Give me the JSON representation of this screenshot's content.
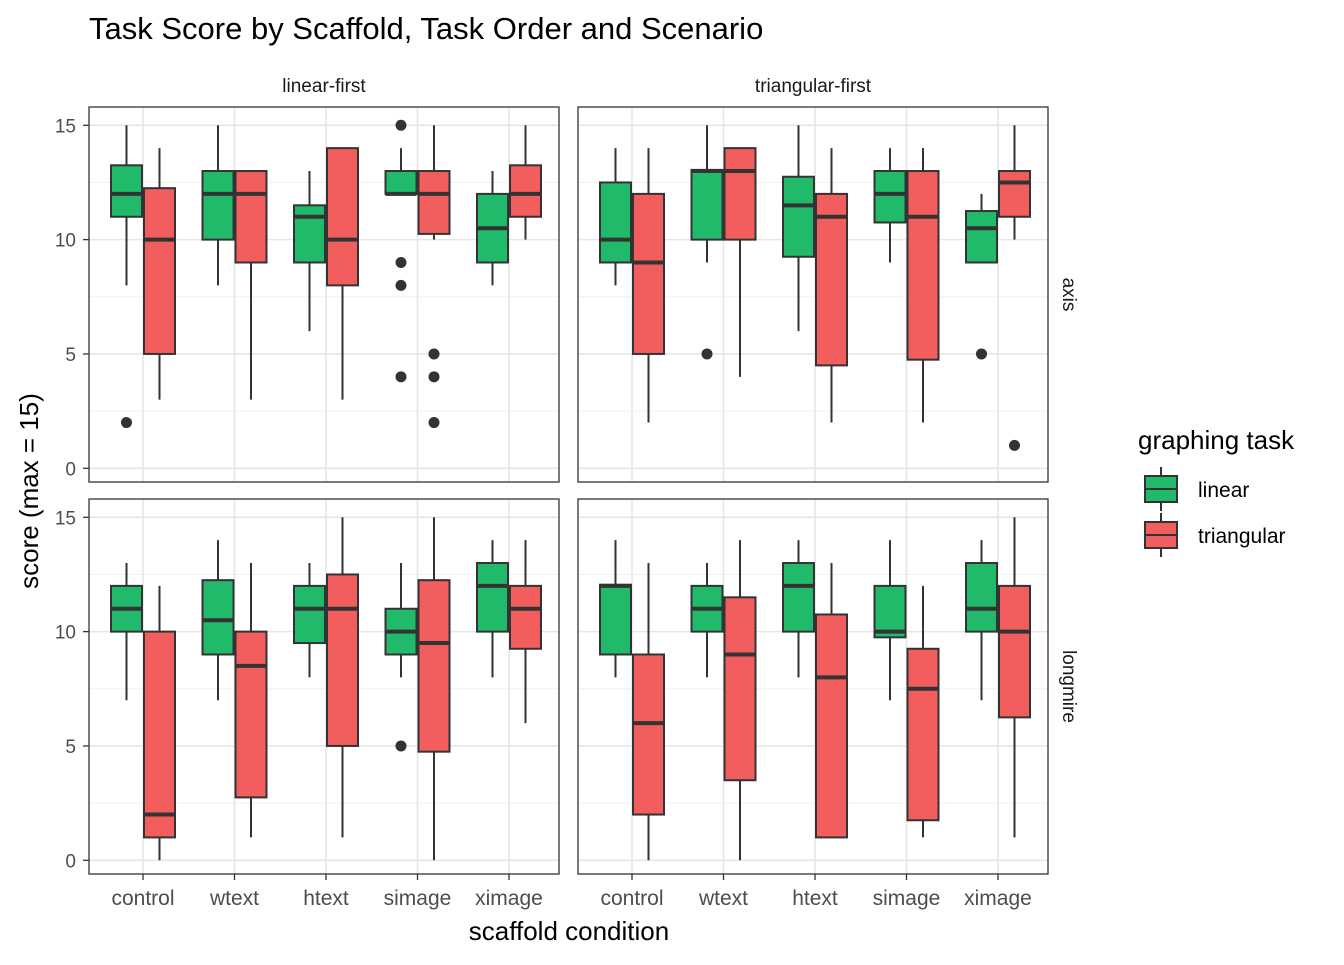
{
  "chart_data": {
    "type": "boxplot",
    "title": "Task Score by Scaffold, Task Order and Scenario",
    "xlabel": "scaffold condition",
    "ylabel": "score (max = 15)",
    "ylim": [
      -0.6,
      15.8
    ],
    "yticks": [
      0,
      5,
      10,
      15
    ],
    "categories": [
      "control",
      "wtext",
      "htext",
      "simage",
      "ximage"
    ],
    "legend": {
      "title": "graphing task",
      "position": "right",
      "entries": [
        {
          "name": "linear",
          "color": "#21BA6A"
        },
        {
          "name": "triangular",
          "color": "#F25E5E"
        }
      ]
    },
    "facet_columns": [
      "linear-first",
      "triangular-first"
    ],
    "facet_rows": [
      "axis",
      "longmire"
    ],
    "grid": true,
    "panels": [
      {
        "column": "linear-first",
        "row": "axis",
        "series": [
          {
            "name": "linear",
            "boxes": [
              {
                "category": "control",
                "whisker_low": 8,
                "q1": 11,
                "median": 12,
                "q3": 13.25,
                "whisker_high": 15,
                "outliers": [
                  2
                ]
              },
              {
                "category": "wtext",
                "whisker_low": 8,
                "q1": 10,
                "median": 12,
                "q3": 13,
                "whisker_high": 15,
                "outliers": []
              },
              {
                "category": "htext",
                "whisker_low": 6,
                "q1": 9,
                "median": 11,
                "q3": 11.5,
                "whisker_high": 13,
                "outliers": []
              },
              {
                "category": "simage",
                "whisker_low": 12,
                "q1": 12,
                "median": 12,
                "q3": 13,
                "whisker_high": 14,
                "outliers": [
                  15,
                  9,
                  8,
                  4
                ]
              },
              {
                "category": "ximage",
                "whisker_low": 8,
                "q1": 9,
                "median": 10.5,
                "q3": 12,
                "whisker_high": 13,
                "outliers": []
              }
            ]
          },
          {
            "name": "triangular",
            "boxes": [
              {
                "category": "control",
                "whisker_low": 3,
                "q1": 5,
                "median": 10,
                "q3": 12.25,
                "whisker_high": 14,
                "outliers": []
              },
              {
                "category": "wtext",
                "whisker_low": 3,
                "q1": 9,
                "median": 12,
                "q3": 13,
                "whisker_high": 13,
                "outliers": []
              },
              {
                "category": "htext",
                "whisker_low": 3,
                "q1": 8,
                "median": 10,
                "q3": 14,
                "whisker_high": 14,
                "outliers": []
              },
              {
                "category": "simage",
                "whisker_low": 10,
                "q1": 10.25,
                "median": 12,
                "q3": 13,
                "whisker_high": 15,
                "outliers": [
                  5,
                  4,
                  2
                ]
              },
              {
                "category": "ximage",
                "whisker_low": 10,
                "q1": 11,
                "median": 12,
                "q3": 13.25,
                "whisker_high": 15,
                "outliers": []
              }
            ]
          }
        ]
      },
      {
        "column": "triangular-first",
        "row": "axis",
        "series": [
          {
            "name": "linear",
            "boxes": [
              {
                "category": "control",
                "whisker_low": 8,
                "q1": 9,
                "median": 10,
                "q3": 12.5,
                "whisker_high": 14,
                "outliers": []
              },
              {
                "category": "wtext",
                "whisker_low": 9,
                "q1": 10,
                "median": 13,
                "q3": 13.05,
                "whisker_high": 15,
                "outliers": [
                  5
                ]
              },
              {
                "category": "htext",
                "whisker_low": 6,
                "q1": 9.25,
                "median": 11.5,
                "q3": 12.75,
                "whisker_high": 15,
                "outliers": []
              },
              {
                "category": "simage",
                "whisker_low": 9,
                "q1": 10.75,
                "median": 12,
                "q3": 13,
                "whisker_high": 14,
                "outliers": []
              },
              {
                "category": "ximage",
                "whisker_low": 9,
                "q1": 9,
                "median": 10.5,
                "q3": 11.25,
                "whisker_high": 12,
                "outliers": [
                  5
                ]
              }
            ]
          },
          {
            "name": "triangular",
            "boxes": [
              {
                "category": "control",
                "whisker_low": 2,
                "q1": 5,
                "median": 9,
                "q3": 12,
                "whisker_high": 14,
                "outliers": []
              },
              {
                "category": "wtext",
                "whisker_low": 4,
                "q1": 10,
                "median": 13,
                "q3": 14,
                "whisker_high": 14,
                "outliers": []
              },
              {
                "category": "htext",
                "whisker_low": 2,
                "q1": 4.5,
                "median": 11,
                "q3": 12,
                "whisker_high": 14,
                "outliers": []
              },
              {
                "category": "simage",
                "whisker_low": 2,
                "q1": 4.75,
                "median": 11,
                "q3": 13,
                "whisker_high": 14,
                "outliers": []
              },
              {
                "category": "ximage",
                "whisker_low": 10,
                "q1": 11,
                "median": 12.5,
                "q3": 13,
                "whisker_high": 15,
                "outliers": [
                  1
                ]
              }
            ]
          }
        ]
      },
      {
        "column": "linear-first",
        "row": "longmire",
        "series": [
          {
            "name": "linear",
            "boxes": [
              {
                "category": "control",
                "whisker_low": 7,
                "q1": 10,
                "median": 11,
                "q3": 12,
                "whisker_high": 13,
                "outliers": []
              },
              {
                "category": "wtext",
                "whisker_low": 7,
                "q1": 9,
                "median": 10.5,
                "q3": 12.25,
                "whisker_high": 14,
                "outliers": []
              },
              {
                "category": "htext",
                "whisker_low": 8,
                "q1": 9.5,
                "median": 11,
                "q3": 12,
                "whisker_high": 13,
                "outliers": []
              },
              {
                "category": "simage",
                "whisker_low": 8,
                "q1": 9,
                "median": 10,
                "q3": 11,
                "whisker_high": 13,
                "outliers": [
                  5
                ]
              },
              {
                "category": "ximage",
                "whisker_low": 8,
                "q1": 10,
                "median": 12,
                "q3": 13,
                "whisker_high": 14,
                "outliers": []
              }
            ]
          },
          {
            "name": "triangular",
            "boxes": [
              {
                "category": "control",
                "whisker_low": 0,
                "q1": 1,
                "median": 2,
                "q3": 10,
                "whisker_high": 12,
                "outliers": []
              },
              {
                "category": "wtext",
                "whisker_low": 1,
                "q1": 2.75,
                "median": 8.5,
                "q3": 10,
                "whisker_high": 13,
                "outliers": []
              },
              {
                "category": "htext",
                "whisker_low": 1,
                "q1": 5,
                "median": 11,
                "q3": 12.5,
                "whisker_high": 15,
                "outliers": []
              },
              {
                "category": "simage",
                "whisker_low": 0,
                "q1": 4.75,
                "median": 9.5,
                "q3": 12.25,
                "whisker_high": 15,
                "outliers": []
              },
              {
                "category": "ximage",
                "whisker_low": 6,
                "q1": 9.25,
                "median": 11,
                "q3": 12,
                "whisker_high": 14,
                "outliers": []
              }
            ]
          }
        ]
      },
      {
        "column": "triangular-first",
        "row": "longmire",
        "series": [
          {
            "name": "linear",
            "boxes": [
              {
                "category": "control",
                "whisker_low": 8,
                "q1": 9,
                "median": 12,
                "q3": 12.05,
                "whisker_high": 14,
                "outliers": []
              },
              {
                "category": "wtext",
                "whisker_low": 8,
                "q1": 10,
                "median": 11,
                "q3": 12,
                "whisker_high": 13,
                "outliers": []
              },
              {
                "category": "htext",
                "whisker_low": 8,
                "q1": 10,
                "median": 12,
                "q3": 13,
                "whisker_high": 14,
                "outliers": []
              },
              {
                "category": "simage",
                "whisker_low": 7,
                "q1": 9.75,
                "median": 10,
                "q3": 12,
                "whisker_high": 14,
                "outliers": []
              },
              {
                "category": "ximage",
                "whisker_low": 7,
                "q1": 10,
                "median": 11,
                "q3": 13,
                "whisker_high": 14,
                "outliers": []
              }
            ]
          },
          {
            "name": "triangular",
            "boxes": [
              {
                "category": "control",
                "whisker_low": 0,
                "q1": 2,
                "median": 6,
                "q3": 9,
                "whisker_high": 13,
                "outliers": []
              },
              {
                "category": "wtext",
                "whisker_low": 0,
                "q1": 3.5,
                "median": 9,
                "q3": 11.5,
                "whisker_high": 14,
                "outliers": []
              },
              {
                "category": "htext",
                "whisker_low": 1,
                "q1": 1,
                "median": 8,
                "q3": 10.75,
                "whisker_high": 13,
                "outliers": []
              },
              {
                "category": "simage",
                "whisker_low": 1,
                "q1": 1.75,
                "median": 7.5,
                "q3": 9.25,
                "whisker_high": 12,
                "outliers": []
              },
              {
                "category": "ximage",
                "whisker_low": 1,
                "q1": 6.25,
                "median": 10,
                "q3": 12,
                "whisker_high": 15,
                "outliers": []
              }
            ]
          }
        ]
      }
    ]
  }
}
